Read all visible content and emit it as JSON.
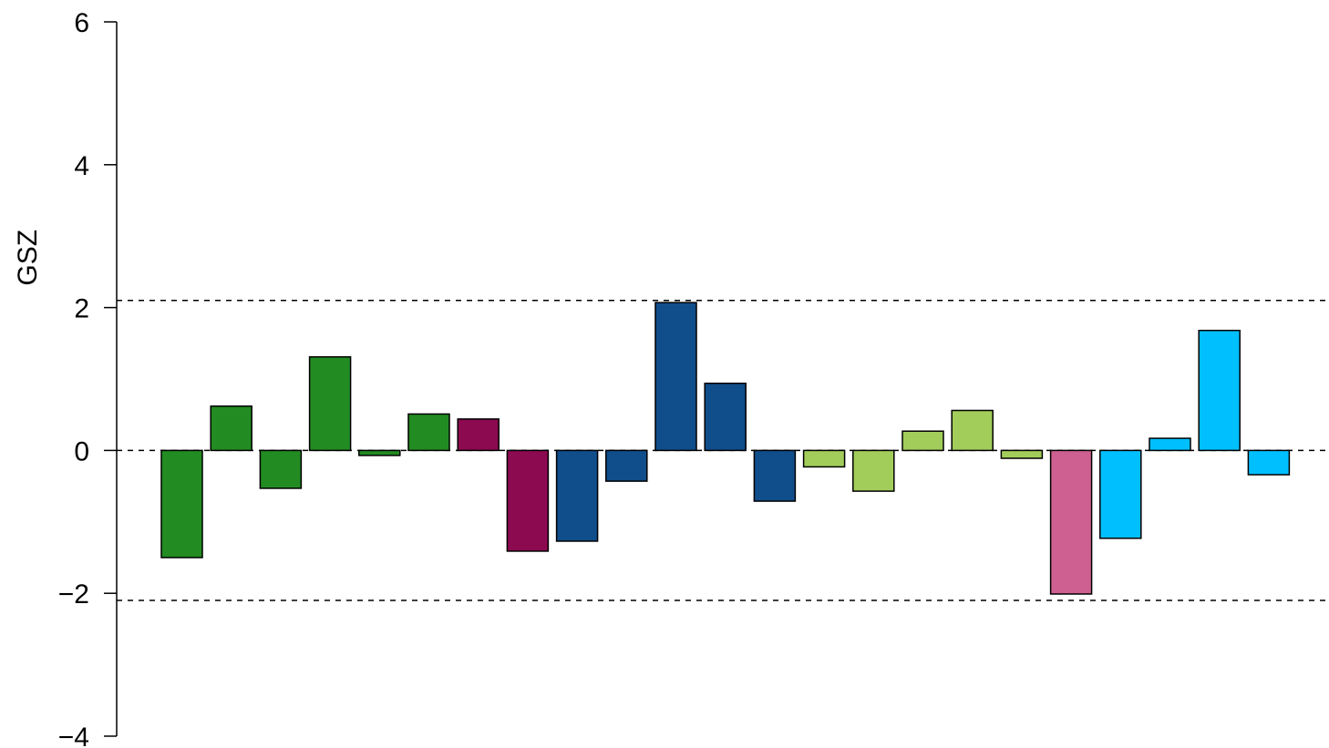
{
  "chart_data": {
    "type": "bar",
    "title": "",
    "xlabel": "",
    "ylabel": "GSZ",
    "ylim": [
      -4,
      6
    ],
    "y_ticks": [
      -4,
      -2,
      0,
      2,
      4,
      6
    ],
    "y_tick_labels": [
      "−4",
      "−2",
      "0",
      "2",
      "4",
      "6"
    ],
    "reference_lines": [
      -2.1,
      0,
      2.1
    ],
    "reference_line_style": "dashed",
    "grid": false,
    "legend": "none",
    "values": [
      -1.5,
      0.62,
      -0.53,
      1.31,
      -0.07,
      0.51,
      0.44,
      -1.41,
      -1.27,
      -0.43,
      2.07,
      0.94,
      -0.71,
      -0.23,
      -0.57,
      0.27,
      0.56,
      -0.11,
      -2.01,
      -1.23,
      0.17,
      1.68,
      -0.34
    ],
    "colors": [
      "#228B22",
      "#228B22",
      "#228B22",
      "#228B22",
      "#228B22",
      "#228B22",
      "#8B0A50",
      "#8B0A50",
      "#104E8B",
      "#104E8B",
      "#104E8B",
      "#104E8B",
      "#104E8B",
      "#A2CD5A",
      "#A2CD5A",
      "#A2CD5A",
      "#A2CD5A",
      "#A2CD5A",
      "#CD6090",
      "#00BFFF",
      "#00BFFF",
      "#00BFFF",
      "#00BFFF"
    ]
  }
}
